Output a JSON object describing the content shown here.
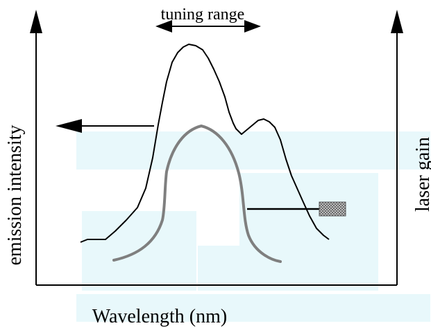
{
  "diagram": {
    "x_axis_label": "Wavelength (nm)",
    "left_axis_label": "emission intensity",
    "right_axis_label": "laser gain",
    "top_annotation": "tuning range",
    "colors": {
      "background": "#ffffff",
      "watermark": "#e8f8fb",
      "emission_curve": "#000000",
      "gain_curve": "#7f7f7f",
      "axes": "#000000",
      "legend_swatch": "#9a9a9a"
    }
  }
}
